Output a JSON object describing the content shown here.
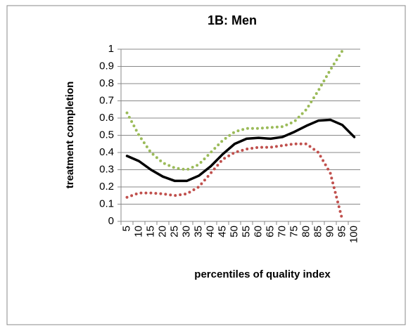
{
  "chart_data": {
    "type": "line",
    "title": "1B: Men",
    "x_label": "percentiles of quality index",
    "y_label": "treatment completion",
    "categories": [
      "5",
      "10",
      "15",
      "20",
      "25",
      "30",
      "35",
      "40",
      "45",
      "50",
      "55",
      "60",
      "65",
      "70",
      "75",
      "80",
      "85",
      "90",
      "95",
      "100"
    ],
    "series": [
      {
        "color": "#9bbb59",
        "style": "dotted",
        "values": [
          0.63,
          0.5,
          0.4,
          0.34,
          0.31,
          0.3,
          0.33,
          0.4,
          0.47,
          0.52,
          0.54,
          0.54,
          0.545,
          0.55,
          0.58,
          0.65,
          0.76,
          0.88,
          0.99,
          null
        ]
      },
      {
        "color": "#c0504d",
        "style": "dotted",
        "values": [
          0.14,
          0.165,
          0.165,
          0.16,
          0.15,
          0.16,
          0.2,
          0.28,
          0.36,
          0.4,
          0.42,
          0.43,
          0.43,
          0.44,
          0.45,
          0.45,
          0.4,
          0.28,
          0.01,
          null
        ]
      },
      {
        "color": "#000000",
        "style": "solid",
        "values": [
          0.38,
          0.35,
          0.3,
          0.26,
          0.235,
          0.235,
          0.265,
          0.32,
          0.39,
          0.45,
          0.48,
          0.485,
          0.48,
          0.49,
          0.52,
          0.555,
          0.585,
          0.59,
          0.56,
          0.49
        ]
      }
    ],
    "ylim": [
      0,
      1
    ],
    "yticks": [
      0,
      0.1,
      0.2,
      0.3,
      0.4,
      0.5,
      0.6,
      0.7,
      0.8,
      0.9,
      1
    ],
    "grid": true
  }
}
